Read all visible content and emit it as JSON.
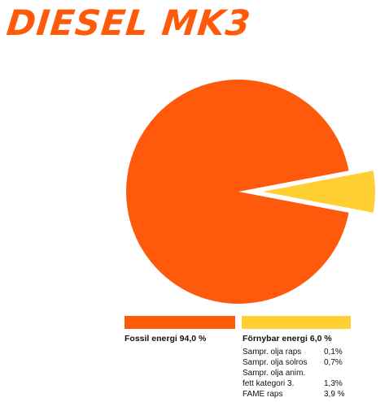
{
  "chart_data": {
    "type": "pie",
    "title": "DIESEL MK3",
    "slices": [
      {
        "label": "Fossil energi 94,0 %",
        "value": 94.0,
        "color": "#ff5a0c"
      },
      {
        "label": "Förnybar energi 6,0 %",
        "value": 6.0,
        "color": "#ffcf33"
      }
    ],
    "renewable_breakdown": [
      {
        "name": "Sampr. olja raps",
        "value": "0,1%"
      },
      {
        "name": "Sampr. olja solros",
        "value": "0,7%"
      },
      {
        "name": "Sampr. olja anim.",
        "value": ""
      },
      {
        "name": "fett kategori 3.",
        "value": "1,3%"
      },
      {
        "name": "FAME raps",
        "value": "3,9 %"
      }
    ],
    "legend_position": "bottom"
  }
}
